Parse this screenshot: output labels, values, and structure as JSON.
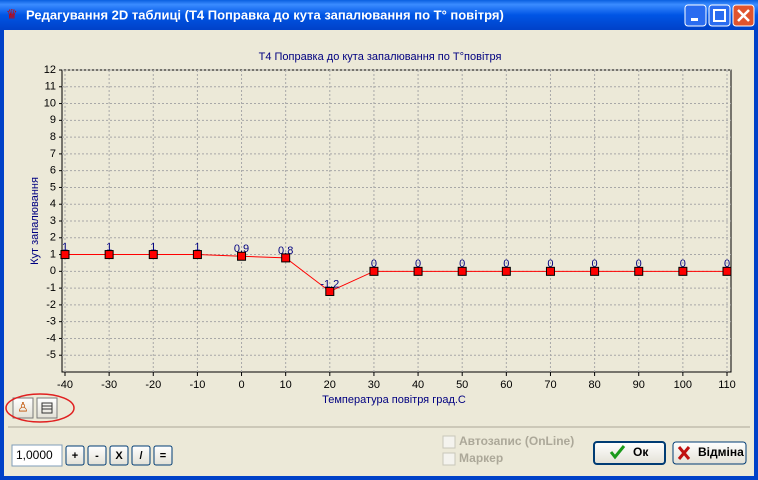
{
  "window": {
    "title": "Редагування 2D таблиці (Т4 Поправка до кута запалювання по Т° повітря)"
  },
  "chart_data": {
    "type": "line",
    "title": "Т4 Поправка до кута запалювання по Т°повітря",
    "x_label": "Температура повітря град.С",
    "y_label": "Кут запалювання",
    "x": [
      -40,
      -30,
      -20,
      -10,
      0,
      10,
      20,
      30,
      40,
      50,
      60,
      70,
      80,
      90,
      100,
      110
    ],
    "values": [
      1,
      1,
      1,
      1,
      0.9,
      0.8,
      -1.2,
      0,
      0,
      0,
      0,
      0,
      0,
      0,
      0,
      0
    ],
    "color": "#ff0000",
    "xlim": [
      -40,
      110
    ],
    "xticks": [
      -40,
      -30,
      -20,
      -10,
      0,
      10,
      20,
      30,
      40,
      50,
      60,
      70,
      80,
      90,
      100,
      110
    ],
    "ylim": [
      -6,
      12
    ],
    "yticks": [
      -5,
      -4,
      -3,
      -2,
      -1,
      0,
      1,
      2,
      3,
      4,
      5,
      6,
      7,
      8,
      9,
      10,
      11,
      12
    ],
    "grid": true
  },
  "controls": {
    "factor_input": "1,0000",
    "op_buttons": [
      "+",
      "-",
      "X",
      "/",
      "="
    ],
    "checkboxes": [
      "Автозапис (OnLine)",
      "Маркер"
    ],
    "ok": "Ок",
    "cancel": "Відміна"
  }
}
